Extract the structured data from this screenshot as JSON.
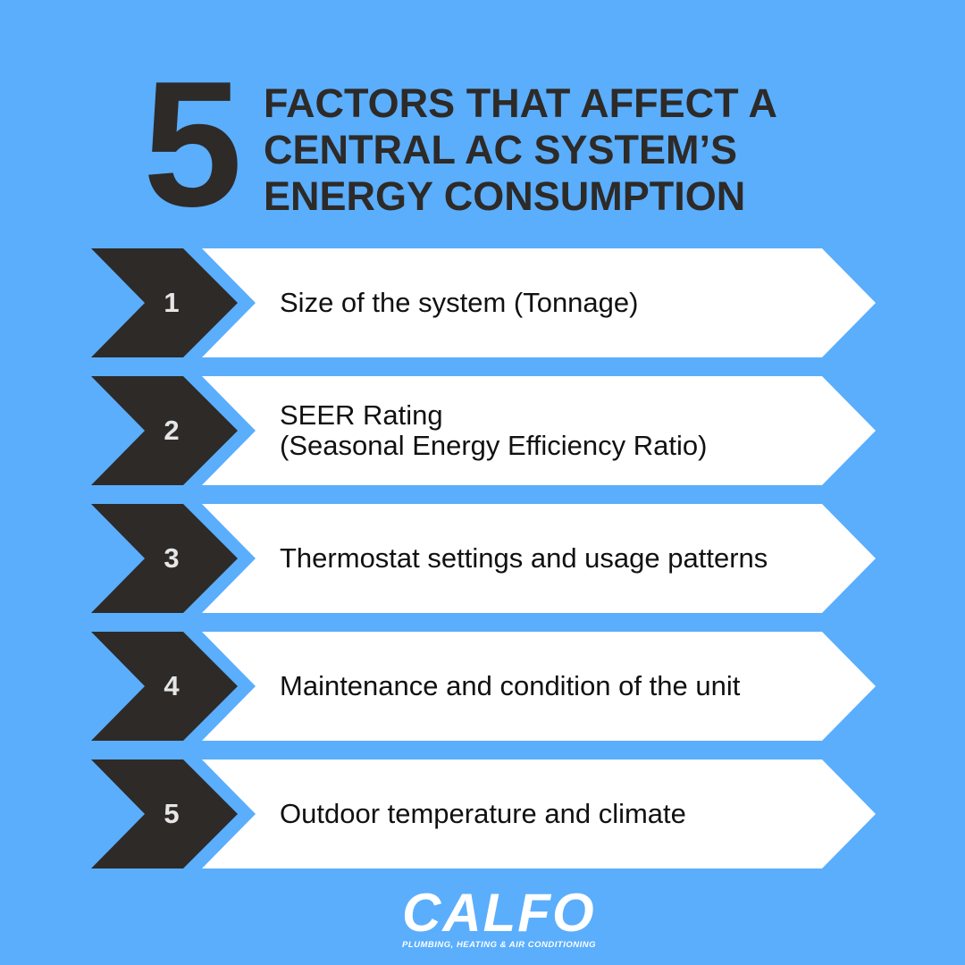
{
  "header": {
    "number": "5",
    "title_lines": [
      "FACTORS THAT AFFECT A",
      "CENTRAL AC SYSTEM’S",
      "ENERGY CONSUMPTION"
    ]
  },
  "factors": [
    {
      "number": "1",
      "lines": [
        "Size of the system (Tonnage)"
      ]
    },
    {
      "number": "2",
      "lines": [
        "SEER Rating",
        "(Seasonal Energy Efficiency Ratio)"
      ]
    },
    {
      "number": "3",
      "lines": [
        "Thermostat settings and usage patterns"
      ]
    },
    {
      "number": "4",
      "lines": [
        "Maintenance and condition of the unit"
      ]
    },
    {
      "number": "5",
      "lines": [
        "Outdoor temperature and climate"
      ]
    }
  ],
  "logo": {
    "name": "CALFO",
    "tagline": "PLUMBING, HEATING & AIR CONDITIONING"
  },
  "colors": {
    "background": "#5aaefc",
    "dark": "#2d2a28",
    "white": "#ffffff"
  }
}
